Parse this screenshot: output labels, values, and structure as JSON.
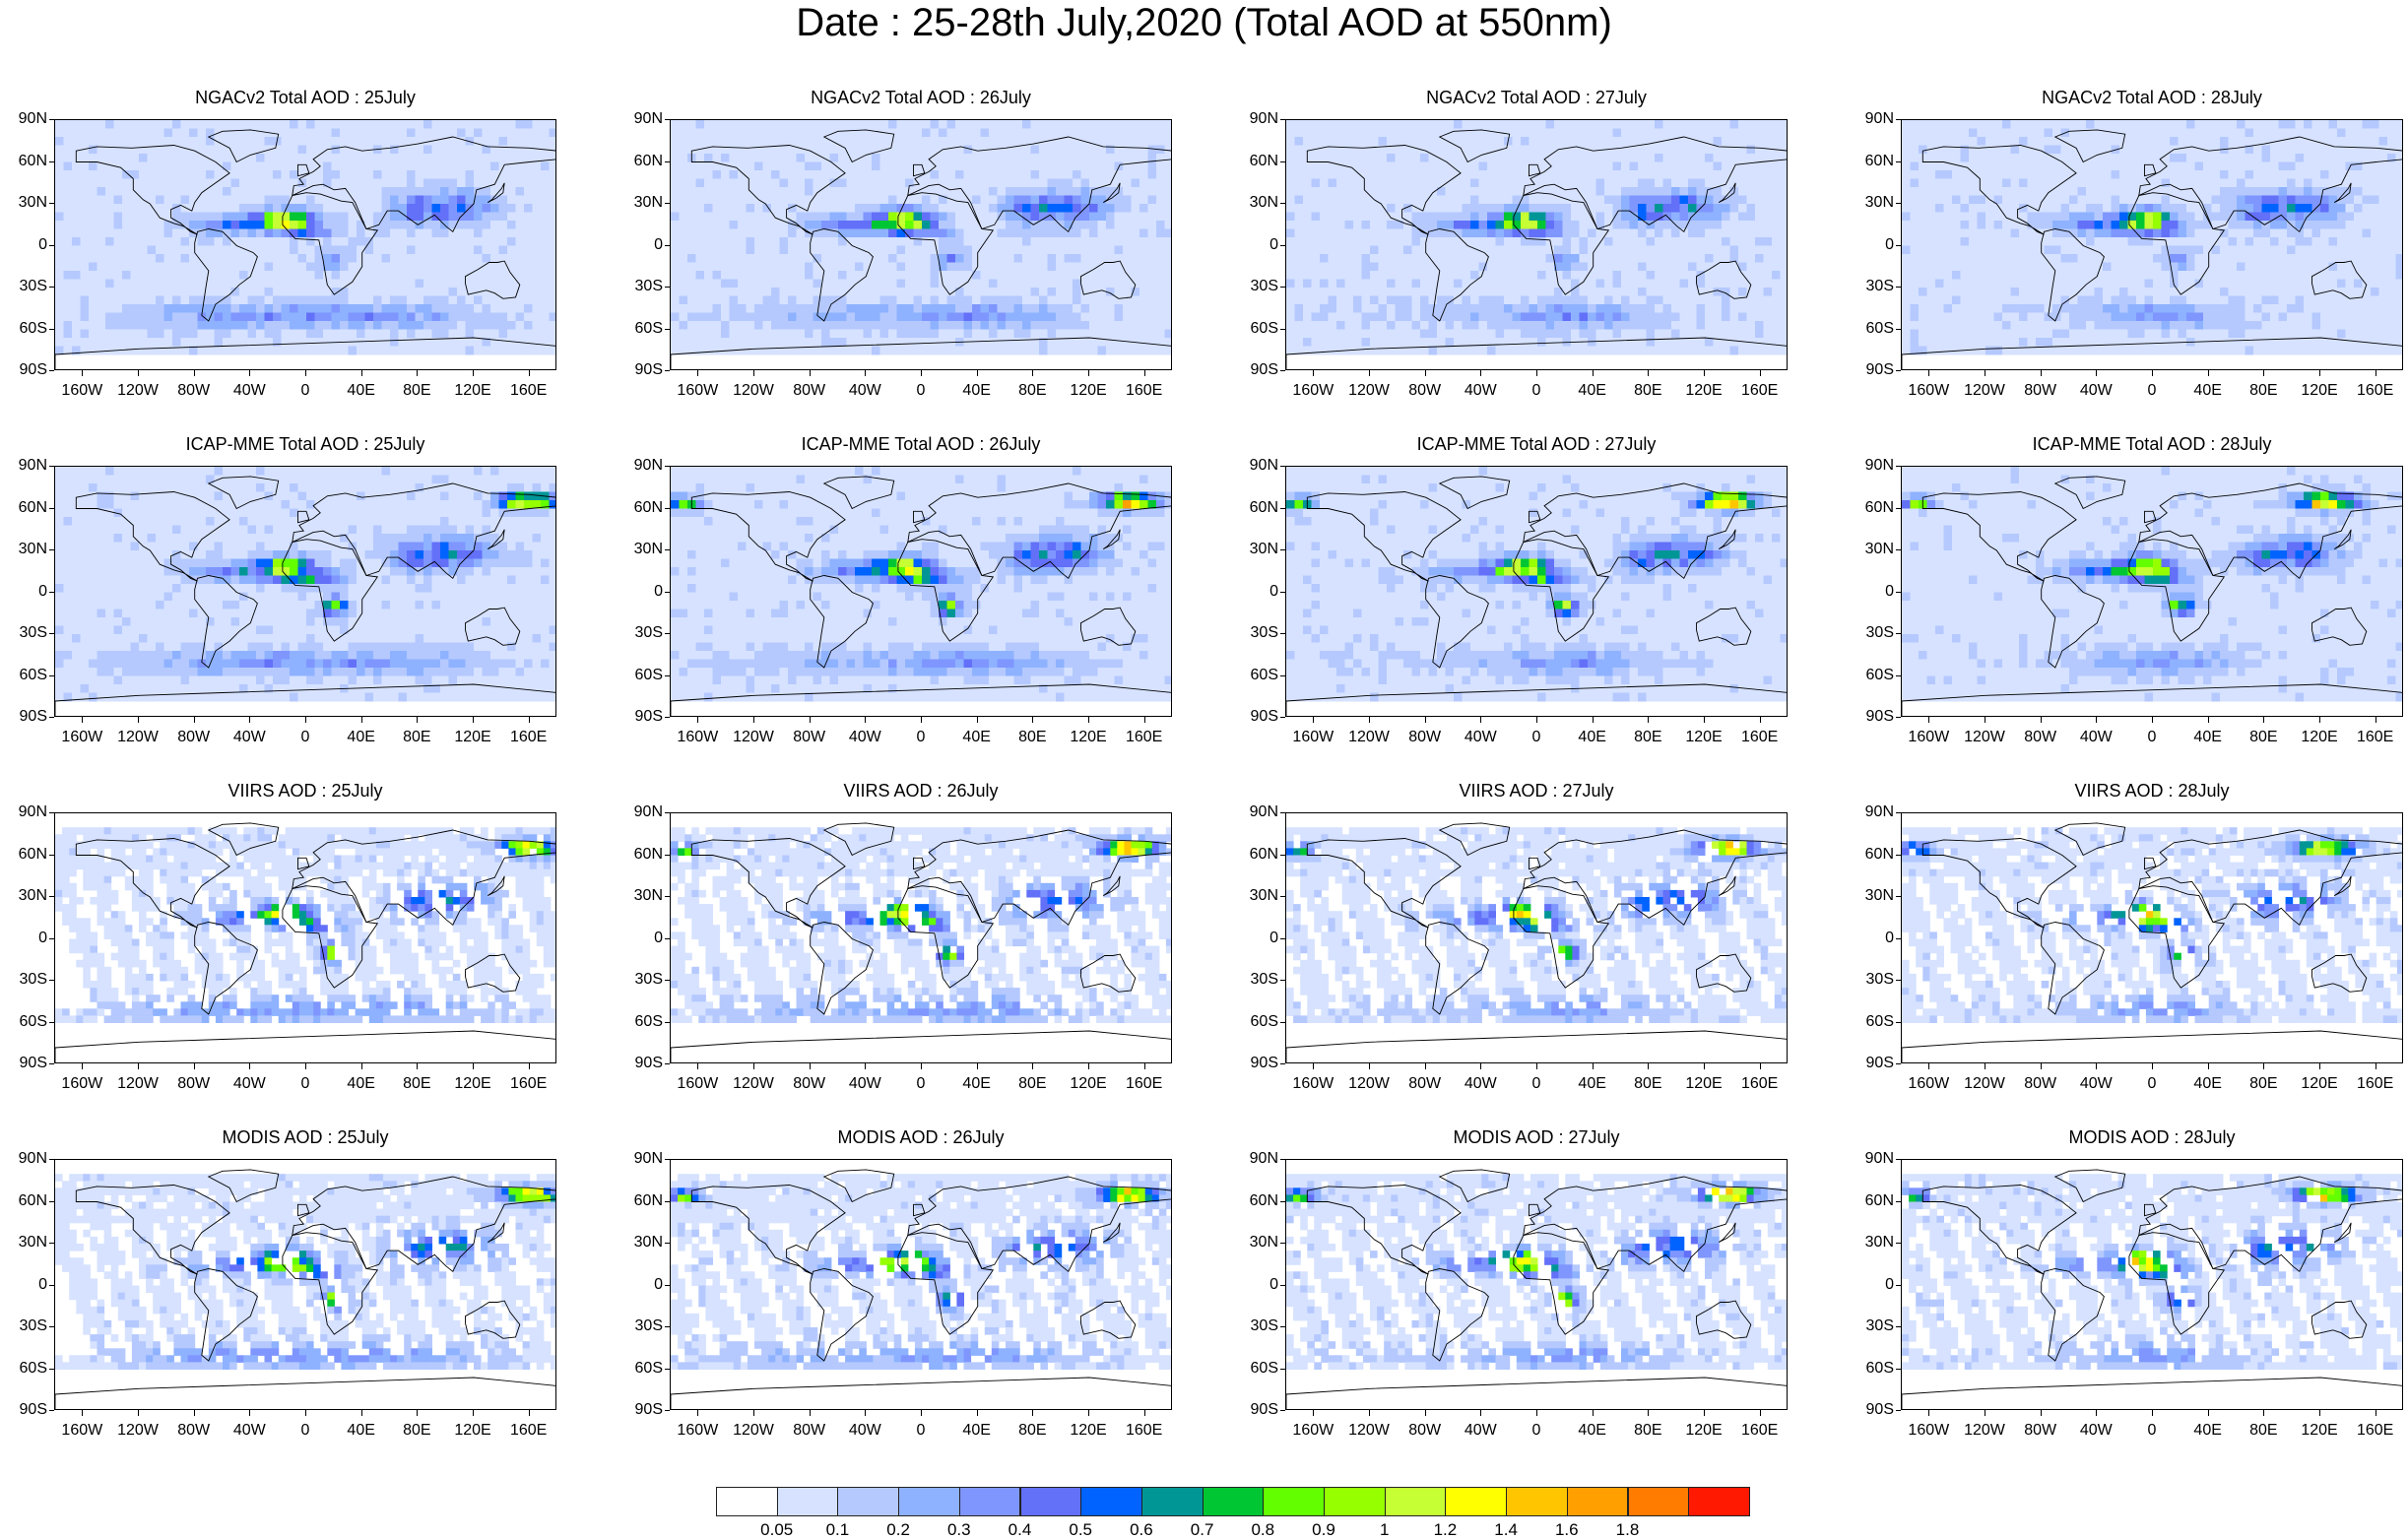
{
  "title": "Date : 25-28th July,2020 (Total AOD at 550nm)",
  "rows": [
    {
      "id": "ngac",
      "titles": [
        "NGACv2 Total AOD : 25July",
        "NGACv2 Total AOD : 26July",
        "NGACv2 Total AOD : 27July",
        "NGACv2 Total AOD : 28July"
      ]
    },
    {
      "id": "icap",
      "titles": [
        "ICAP-MME Total AOD : 25July",
        "ICAP-MME Total AOD : 26July",
        "ICAP-MME Total AOD : 27July",
        "ICAP-MME Total AOD : 28July"
      ]
    },
    {
      "id": "viirs",
      "titles": [
        "VIIRS AOD : 25July",
        "VIIRS AOD : 26July",
        "VIIRS AOD : 27July",
        "VIIRS AOD : 28July"
      ]
    },
    {
      "id": "modis",
      "titles": [
        "MODIS AOD : 25July",
        "MODIS AOD : 26July",
        "MODIS AOD : 27July",
        "MODIS AOD : 28July"
      ]
    }
  ],
  "lat_labels": [
    "90N",
    "60N",
    "30N",
    "0",
    "30S",
    "60S",
    "90S"
  ],
  "lon_labels": [
    "160W",
    "120W",
    "80W",
    "40W",
    "0",
    "40E",
    "80E",
    "120E",
    "160E"
  ],
  "colorbar": {
    "labels": [
      "0.05",
      "0.1",
      "0.2",
      "0.3",
      "0.4",
      "0.5",
      "0.6",
      "0.7",
      "0.8",
      "0.9",
      "1",
      "1.2",
      "1.4",
      "1.6",
      "1.8"
    ],
    "colors": [
      "#ffffff",
      "#d6e2ff",
      "#b5c9ff",
      "#8eb2ff",
      "#7f96ff",
      "#6370f8",
      "#0063ff",
      "#009696",
      "#00c633",
      "#63ff00",
      "#96ff00",
      "#c6ff33",
      "#ffff00",
      "#ffc600",
      "#ffa000",
      "#ff7c00",
      "#ff1900"
    ]
  }
}
